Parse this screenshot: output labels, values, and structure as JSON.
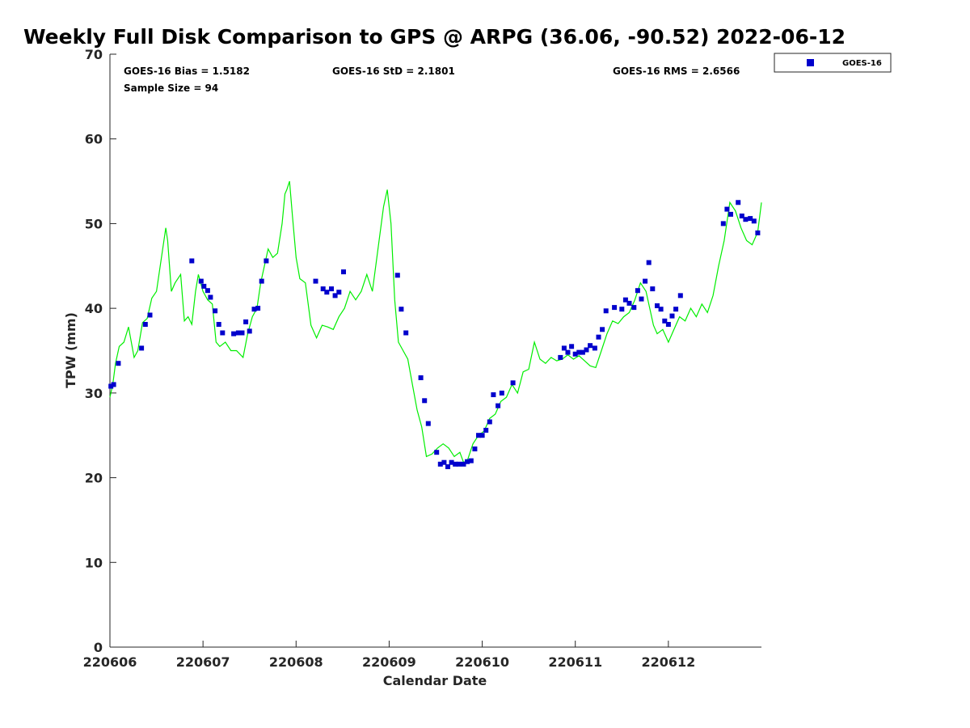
{
  "colors": {
    "series_line": "#00ee00",
    "series_points": "#0000cc",
    "axis": "#262626"
  },
  "chart_data": {
    "type": "scatter",
    "title": "Weekly Full Disk Comparison to GPS @ ARPG (36.06, -90.52) 2022-06-12",
    "xlabel": "Calendar Date",
    "ylabel": "TPW (mm)",
    "xlim": [
      220606,
      220613
    ],
    "ylim": [
      0,
      70
    ],
    "x_ticks": [
      220606,
      220607,
      220608,
      220609,
      220610,
      220611,
      220612
    ],
    "x_tick_labels": [
      "220606",
      "220607",
      "220608",
      "220609",
      "220610",
      "220611",
      "220612"
    ],
    "y_ticks": [
      0,
      10,
      20,
      30,
      40,
      50,
      60,
      70
    ],
    "y_tick_labels": [
      "0",
      "10",
      "20",
      "30",
      "40",
      "50",
      "60",
      "70"
    ],
    "grid": false,
    "legend": {
      "placement": "top-right outside",
      "entries": [
        "GOES-16"
      ]
    },
    "stats": {
      "bias": "GOES-16 Bias = 1.5182",
      "std": "GOES-16 StD = 2.1801",
      "rms": "GOES-16 RMS = 2.6566",
      "sample": "Sample Size = 94"
    },
    "series": [
      {
        "name": "GOES-16",
        "style": "markers",
        "x": [
          220606.01,
          220606.04,
          220606.09,
          220606.34,
          220606.38,
          220606.43,
          220606.88,
          220606.98,
          220607.01,
          220607.05,
          220607.08,
          220607.13,
          220607.17,
          220607.21,
          220607.33,
          220607.38,
          220607.42,
          220607.46,
          220607.5,
          220607.55,
          220607.59,
          220607.63,
          220607.68,
          220608.21,
          220608.29,
          220608.33,
          220608.38,
          220608.42,
          220608.46,
          220608.51,
          220609.09,
          220609.13,
          220609.18,
          220609.34,
          220609.38,
          220609.42,
          220609.51,
          220609.55,
          220609.59,
          220609.63,
          220609.67,
          220609.71,
          220609.75,
          220609.8,
          220609.84,
          220609.88,
          220609.92,
          220609.96,
          220610.0,
          220610.04,
          220610.08,
          220610.12,
          220610.17,
          220610.21,
          220610.33,
          220610.84,
          220610.88,
          220610.92,
          220610.96,
          220611.0,
          220611.04,
          220611.08,
          220611.12,
          220611.16,
          220611.21,
          220611.25,
          220611.29,
          220611.33,
          220611.42,
          220611.5,
          220611.54,
          220611.58,
          220611.63,
          220611.67,
          220611.71,
          220611.75,
          220611.79,
          220611.83,
          220611.88,
          220611.92,
          220611.96,
          220612.0,
          220612.04,
          220612.08,
          220612.13,
          220612.59,
          220612.63,
          220612.67,
          220612.75,
          220612.79,
          220612.83,
          220612.88,
          220612.92,
          220612.96
        ],
        "y": [
          30.8,
          31.0,
          33.5,
          35.3,
          38.1,
          39.2,
          45.6,
          43.2,
          42.6,
          42.1,
          41.3,
          39.7,
          38.1,
          37.1,
          37.0,
          37.1,
          37.1,
          38.4,
          37.3,
          39.9,
          40.0,
          43.2,
          45.6,
          43.2,
          42.3,
          41.9,
          42.3,
          41.5,
          41.9,
          44.3,
          43.9,
          39.9,
          37.1,
          31.8,
          29.1,
          26.4,
          23.0,
          21.6,
          21.8,
          21.3,
          21.8,
          21.6,
          21.6,
          21.6,
          21.9,
          22.0,
          23.4,
          25.0,
          25.0,
          25.6,
          26.6,
          29.8,
          28.5,
          30.0,
          31.2,
          34.2,
          35.3,
          34.8,
          35.5,
          34.6,
          34.8,
          34.8,
          35.1,
          35.6,
          35.3,
          36.6,
          37.5,
          39.7,
          40.1,
          39.9,
          41.0,
          40.6,
          40.1,
          42.1,
          41.1,
          43.2,
          45.4,
          42.3,
          40.3,
          39.9,
          38.5,
          38.1,
          39.1,
          39.9,
          41.5,
          50.0,
          51.7,
          51.1,
          52.5,
          50.9,
          50.5,
          50.6,
          50.3,
          48.9
        ]
      },
      {
        "name": "",
        "style": "line",
        "x": [
          220606.0,
          220606.03,
          220606.06,
          220606.1,
          220606.15,
          220606.2,
          220606.26,
          220606.3,
          220606.35,
          220606.4,
          220606.45,
          220606.5,
          220606.54,
          220606.6,
          220606.62,
          220606.66,
          220606.7,
          220606.76,
          220606.8,
          220606.84,
          220606.88,
          220606.92,
          220606.95,
          220607.0,
          220607.05,
          220607.1,
          220607.14,
          220607.18,
          220607.24,
          220607.3,
          220607.36,
          220607.43,
          220607.48,
          220607.53,
          220607.58,
          220607.62,
          220607.66,
          220607.7,
          220607.75,
          220607.8,
          220607.85,
          220607.88,
          220607.9,
          220607.93,
          220607.96,
          220608.0,
          220608.04,
          220608.1,
          220608.16,
          220608.22,
          220608.28,
          220608.34,
          220608.4,
          220608.46,
          220608.52,
          220608.58,
          220608.64,
          220608.7,
          220608.76,
          220608.82,
          220608.88,
          220608.94,
          220608.98,
          220609.02,
          220609.06,
          220609.1,
          220609.15,
          220609.2,
          220609.25,
          220609.3,
          220609.35,
          220609.4,
          220609.46,
          220609.52,
          220609.58,
          220609.64,
          220609.7,
          220609.76,
          220609.8,
          220609.84,
          220609.9,
          220609.96,
          220610.02,
          220610.08,
          220610.14,
          220610.2,
          220610.26,
          220610.32,
          220610.38,
          220610.44,
          220610.5,
          220610.56,
          220610.62,
          220610.68,
          220610.74,
          220610.8,
          220610.86,
          220610.92,
          220610.98,
          220611.04,
          220611.1,
          220611.16,
          220611.22,
          220611.28,
          220611.34,
          220611.4,
          220611.46,
          220611.52,
          220611.58,
          220611.64,
          220611.7,
          220611.76,
          220611.8,
          220611.84,
          220611.88,
          220611.94,
          220612.0,
          220612.06,
          220612.12,
          220612.18,
          220612.24,
          220612.3,
          220612.36,
          220612.42,
          220612.48,
          220612.54,
          220612.6,
          220612.66,
          220612.72,
          220612.78,
          220612.84,
          220612.9,
          220612.96,
          220613.0
        ],
        "y": [
          29.5,
          31.0,
          33.5,
          35.5,
          36.0,
          37.8,
          34.2,
          35.0,
          38.3,
          38.8,
          41.2,
          42.0,
          45.0,
          49.5,
          48.0,
          42.0,
          43.0,
          44.0,
          38.5,
          39.0,
          38.1,
          42.0,
          44.0,
          42.0,
          41.0,
          40.5,
          36.0,
          35.5,
          36.0,
          35.0,
          35.0,
          34.2,
          37.0,
          39.0,
          40.0,
          43.0,
          45.0,
          47.0,
          46.0,
          46.5,
          50.0,
          53.5,
          54.0,
          55.0,
          51.0,
          46.0,
          43.5,
          43.0,
          38.0,
          36.5,
          38.0,
          37.8,
          37.5,
          39.0,
          40.0,
          42.0,
          41.0,
          42.0,
          44.0,
          42.0,
          47.0,
          52.0,
          54.0,
          50.0,
          41.0,
          36.0,
          35.0,
          34.0,
          31.0,
          28.0,
          26.0,
          22.5,
          22.8,
          23.5,
          24.0,
          23.5,
          22.5,
          23.0,
          21.8,
          22.0,
          24.0,
          25.0,
          25.5,
          27.0,
          27.5,
          29.0,
          29.5,
          31.0,
          30.0,
          32.5,
          32.8,
          36.0,
          34.0,
          33.5,
          34.2,
          33.8,
          34.0,
          34.5,
          34.0,
          34.4,
          33.8,
          33.2,
          33.0,
          35.0,
          37.0,
          38.5,
          38.2,
          39.0,
          39.5,
          41.0,
          43.0,
          42.0,
          40.0,
          38.0,
          37.0,
          37.5,
          36.0,
          37.5,
          39.0,
          38.5,
          40.0,
          39.0,
          40.5,
          39.5,
          41.5,
          45.0,
          48.0,
          52.5,
          51.5,
          49.5,
          48.0,
          47.5,
          49.0,
          52.5
        ]
      }
    ]
  }
}
